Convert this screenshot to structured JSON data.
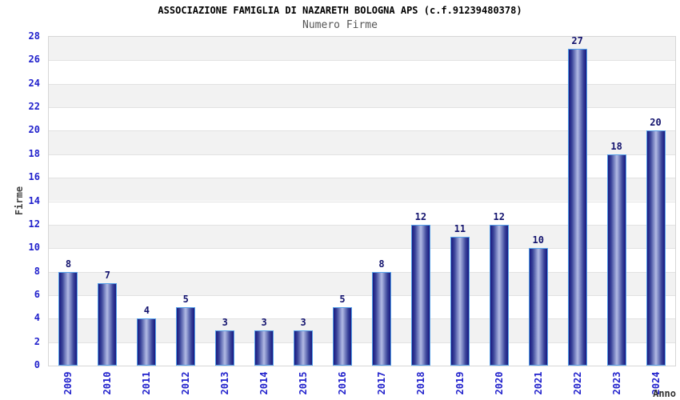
{
  "chart_data": {
    "type": "bar",
    "title": "ASSOCIAZIONE FAMIGLIA DI NAZARETH BOLOGNA APS (c.f.91239480378)",
    "subtitle": "Numero Firme",
    "xlabel": "Anno",
    "ylabel": "Firme",
    "categories": [
      "2009",
      "2010",
      "2011",
      "2012",
      "2013",
      "2014",
      "2015",
      "2016",
      "2017",
      "2018",
      "2019",
      "2020",
      "2021",
      "2022",
      "2023",
      "2024"
    ],
    "values": [
      8,
      7,
      4,
      5,
      3,
      3,
      3,
      5,
      8,
      12,
      11,
      12,
      10,
      27,
      18,
      20
    ],
    "ylim": [
      0,
      28
    ],
    "ytick_step": 2,
    "yticks": [
      0,
      2,
      4,
      6,
      8,
      10,
      12,
      14,
      16,
      18,
      20,
      22,
      24,
      26,
      28
    ],
    "grid": true,
    "legend": "none",
    "colors": {
      "band_gray": "#f2f2f2",
      "band_white": "#ffffff",
      "gridline": "#e2e2e2",
      "plot_border": "#d6d6d6",
      "bar_edge": "#55a0e8",
      "bar_dark": "#181880",
      "bar_light": "#b2bae4",
      "tick_text": "#2121cc",
      "value_label": "#13136e",
      "title_text": "#000000",
      "subtitle_text": "#555555",
      "axis_title_text": "#454545"
    }
  }
}
